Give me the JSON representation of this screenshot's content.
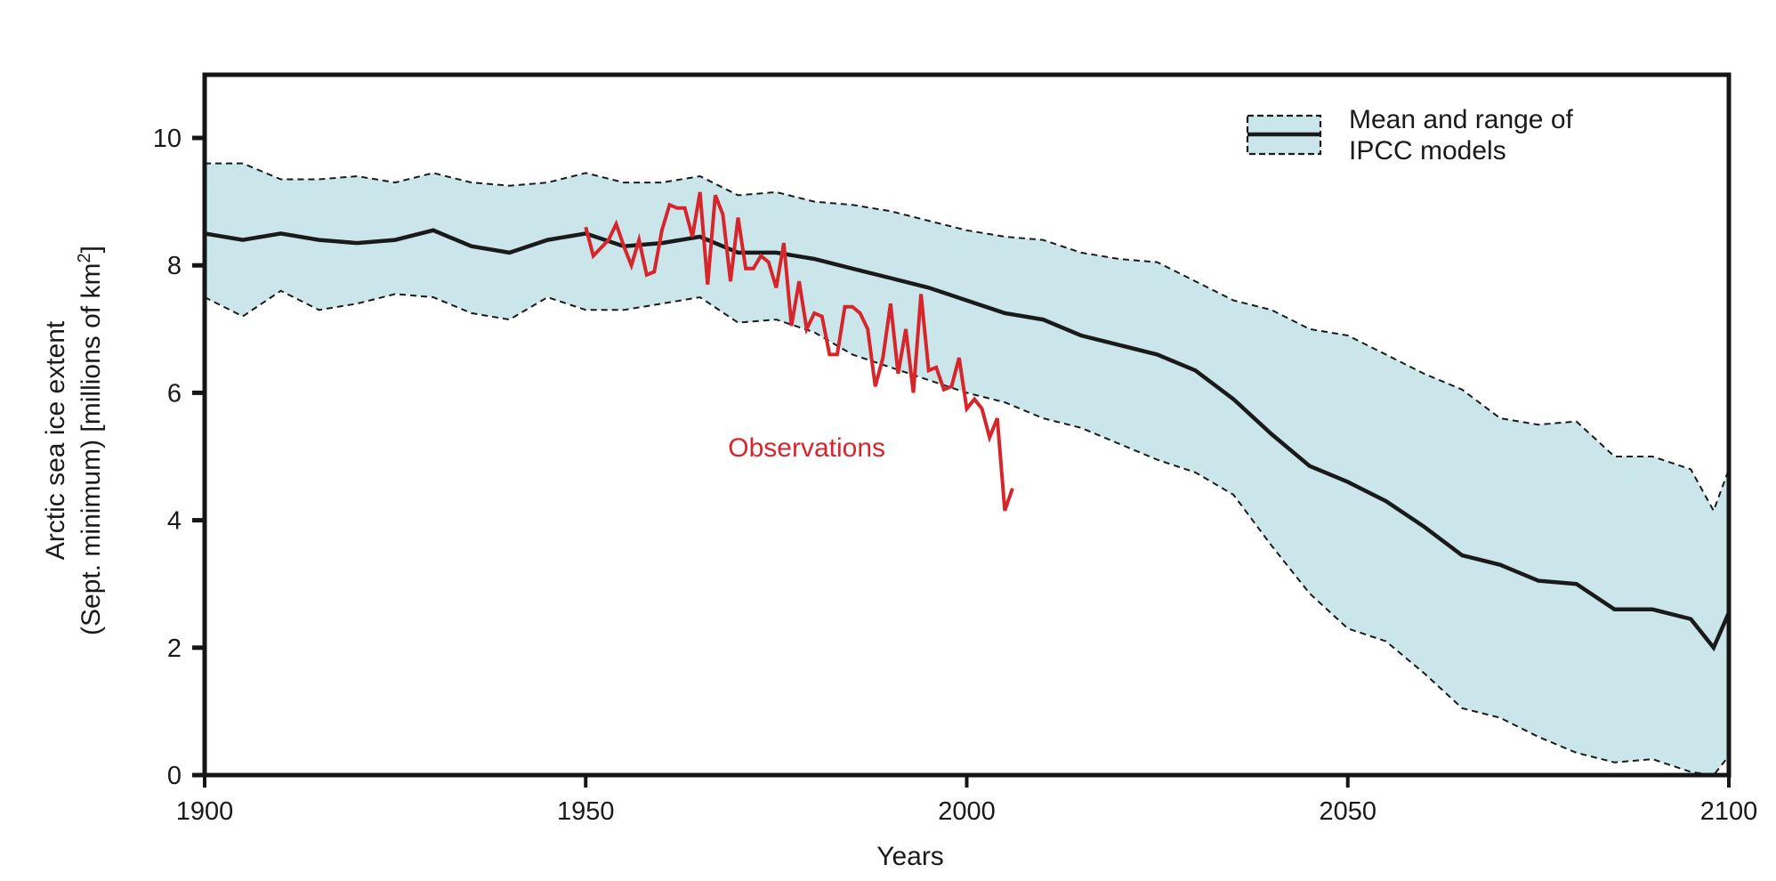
{
  "chart_data": {
    "type": "line",
    "title": "",
    "xlabel": "Years",
    "ylabel_line1": "Arctic sea ice extent",
    "ylabel_line2": "(Sept. minimum) [millions of km",
    "ylabel_sup": "2",
    "ylabel_end": "]",
    "xlim": [
      1900,
      2100
    ],
    "ylim": [
      0,
      11
    ],
    "x_ticks": [
      1900,
      1950,
      2000,
      2050,
      2100
    ],
    "x_tick_labels": [
      "1900",
      "1950",
      "2000",
      "2050",
      "2100"
    ],
    "y_ticks": [
      0,
      2,
      4,
      6,
      8,
      10
    ],
    "y_tick_labels": [
      "0",
      "2",
      "4",
      "6",
      "8",
      "10"
    ],
    "grid": false,
    "legend": {
      "placement": "top-right",
      "line1": "Mean and range of",
      "line2": "IPCC models"
    },
    "annotations": [
      {
        "text": "Observations",
        "x": 1979,
        "y": 5.0,
        "color": "#d7262b"
      }
    ],
    "colors": {
      "band": "#cbe6ea",
      "mean": "#1a1a1a",
      "observations": "#d7262b",
      "frame": "#151515"
    },
    "series": [
      {
        "name": "IPCC models mean",
        "x": [
          1900,
          1905,
          1910,
          1915,
          1920,
          1925,
          1930,
          1935,
          1940,
          1945,
          1950,
          1955,
          1960,
          1965,
          1970,
          1975,
          1980,
          1985,
          1990,
          1995,
          2000,
          2005,
          2010,
          2015,
          2020,
          2025,
          2030,
          2035,
          2040,
          2045,
          2050,
          2055,
          2060,
          2065,
          2070,
          2075,
          2080,
          2085,
          2090,
          2095,
          2098,
          2100
        ],
        "values": [
          8.5,
          8.4,
          8.5,
          8.4,
          8.35,
          8.4,
          8.55,
          8.3,
          8.2,
          8.4,
          8.5,
          8.3,
          8.35,
          8.45,
          8.2,
          8.2,
          8.1,
          7.95,
          7.8,
          7.65,
          7.45,
          7.25,
          7.15,
          6.9,
          6.75,
          6.6,
          6.35,
          5.9,
          5.35,
          4.85,
          4.6,
          4.3,
          3.9,
          3.45,
          3.3,
          3.05,
          3.0,
          2.6,
          2.6,
          2.45,
          2.0,
          2.55
        ]
      },
      {
        "name": "IPCC models range (upper)",
        "x": [
          1900,
          1905,
          1910,
          1915,
          1920,
          1925,
          1930,
          1935,
          1940,
          1945,
          1950,
          1955,
          1960,
          1965,
          1970,
          1975,
          1980,
          1985,
          1990,
          1995,
          2000,
          2005,
          2010,
          2015,
          2020,
          2025,
          2030,
          2035,
          2040,
          2045,
          2050,
          2055,
          2060,
          2065,
          2070,
          2075,
          2080,
          2085,
          2090,
          2095,
          2098,
          2100
        ],
        "values": [
          9.6,
          9.6,
          9.35,
          9.35,
          9.4,
          9.3,
          9.45,
          9.3,
          9.25,
          9.3,
          9.45,
          9.3,
          9.3,
          9.4,
          9.1,
          9.15,
          9.0,
          8.95,
          8.85,
          8.7,
          8.55,
          8.45,
          8.4,
          8.2,
          8.1,
          8.05,
          7.75,
          7.45,
          7.3,
          7.0,
          6.9,
          6.6,
          6.3,
          6.05,
          5.6,
          5.5,
          5.55,
          5.0,
          5.0,
          4.8,
          4.15,
          4.8
        ]
      },
      {
        "name": "IPCC models range (lower)",
        "x": [
          1900,
          1905,
          1910,
          1915,
          1920,
          1925,
          1930,
          1935,
          1940,
          1945,
          1950,
          1955,
          1960,
          1965,
          1970,
          1975,
          1980,
          1985,
          1990,
          1995,
          2000,
          2005,
          2010,
          2015,
          2020,
          2025,
          2030,
          2035,
          2040,
          2045,
          2050,
          2055,
          2060,
          2065,
          2070,
          2075,
          2080,
          2085,
          2090,
          2095,
          2098,
          2100
        ],
        "values": [
          7.5,
          7.2,
          7.6,
          7.3,
          7.4,
          7.55,
          7.5,
          7.25,
          7.15,
          7.5,
          7.3,
          7.3,
          7.4,
          7.5,
          7.1,
          7.15,
          6.95,
          6.6,
          6.4,
          6.2,
          6.0,
          5.85,
          5.6,
          5.45,
          5.2,
          4.95,
          4.75,
          4.4,
          3.6,
          2.85,
          2.3,
          2.1,
          1.6,
          1.05,
          0.9,
          0.6,
          0.35,
          0.2,
          0.25,
          0.05,
          0.0,
          0.3
        ]
      },
      {
        "name": "Observations",
        "x": [
          1950,
          1951,
          1953,
          1954,
          1955,
          1956,
          1957,
          1958,
          1959,
          1960,
          1961,
          1962,
          1963,
          1964,
          1965,
          1966,
          1967,
          1968,
          1969,
          1970,
          1971,
          1972,
          1973,
          1974,
          1975,
          1976,
          1977,
          1978,
          1979,
          1980,
          1981,
          1982,
          1983,
          1984,
          1985,
          1986,
          1987,
          1988,
          1989,
          1990,
          1991,
          1992,
          1993,
          1994,
          1995,
          1996,
          1997,
          1998,
          1999,
          2000,
          2001,
          2002,
          2003,
          2004,
          2005,
          2006
        ],
        "values": [
          8.6,
          8.15,
          8.4,
          8.65,
          8.3,
          8.0,
          8.4,
          7.85,
          7.9,
          8.55,
          8.95,
          8.9,
          8.9,
          8.45,
          9.15,
          7.7,
          9.1,
          8.8,
          7.75,
          8.75,
          7.95,
          7.95,
          8.15,
          8.05,
          7.65,
          8.35,
          7.05,
          7.75,
          7.0,
          7.25,
          7.2,
          6.6,
          6.6,
          7.35,
          7.35,
          7.25,
          7.0,
          6.1,
          6.55,
          7.4,
          6.3,
          7.0,
          6.0,
          7.55,
          6.35,
          6.4,
          6.05,
          6.1,
          6.55,
          5.75,
          5.9,
          5.75,
          5.3,
          5.6,
          4.15,
          4.5
        ]
      }
    ]
  }
}
